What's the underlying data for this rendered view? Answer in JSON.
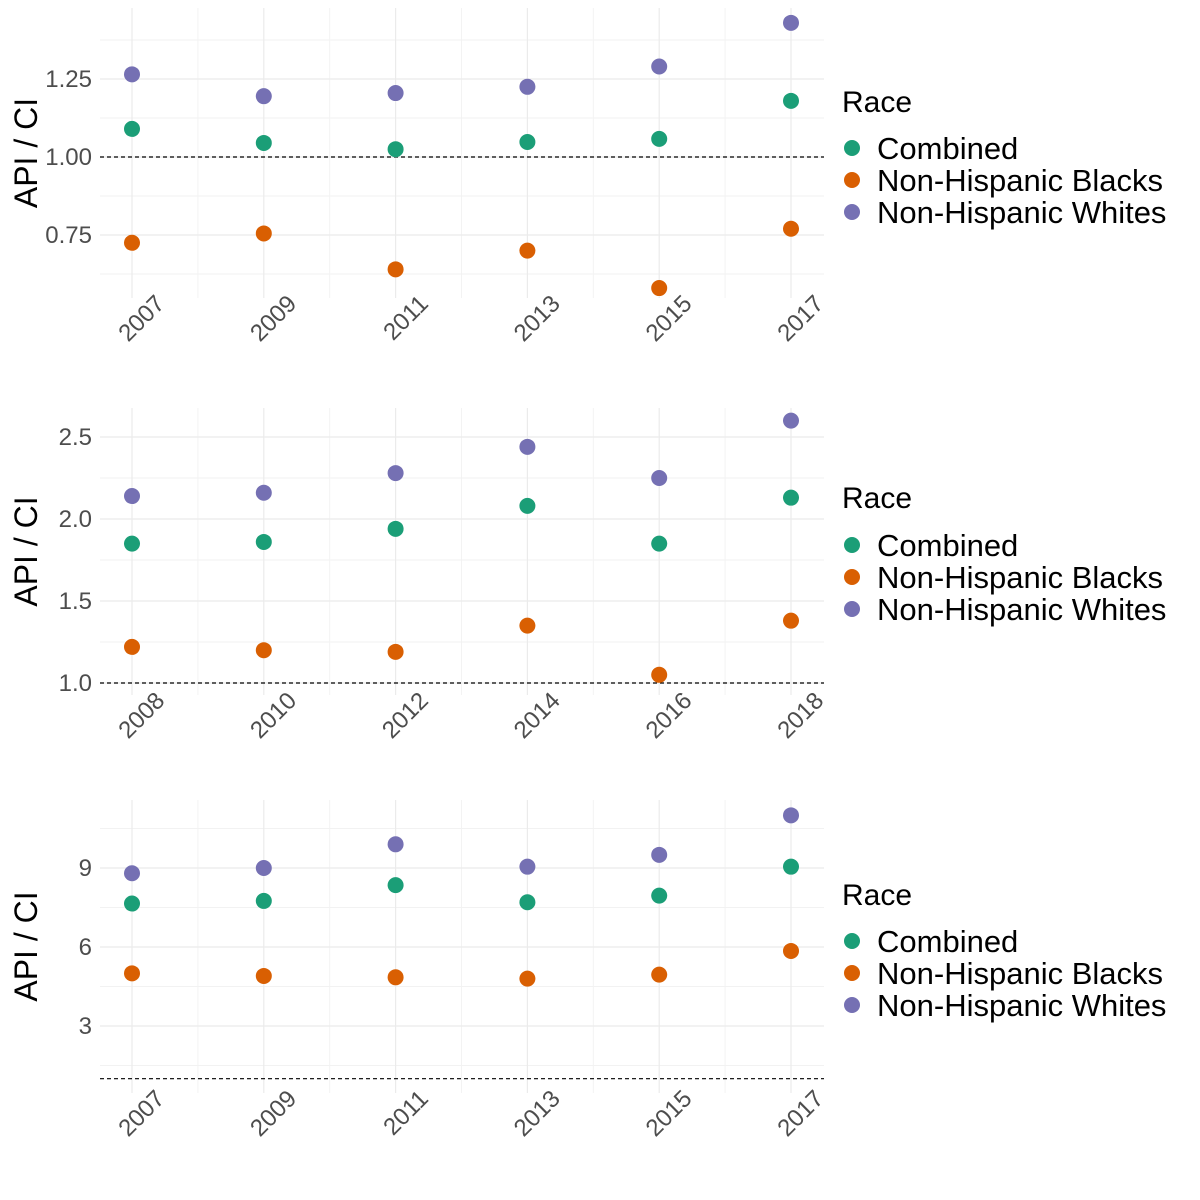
{
  "chart_data": [
    {
      "type": "scatter",
      "xlabel": "",
      "ylabel": "API / CI",
      "x": [
        2007,
        2009,
        2011,
        2013,
        2015,
        2017
      ],
      "x_tick_labels": [
        "2007",
        "2009",
        "2011",
        "2013",
        "2015",
        "2017"
      ],
      "ylim": [
        0.58,
        1.45
      ],
      "y_ticks": [
        0.75,
        1.0,
        1.25
      ],
      "y_tick_labels": [
        "0.75",
        "1.00",
        "1.25"
      ],
      "reference_line": 1.0,
      "grid": true,
      "legend": {
        "title": "Race",
        "position": "right"
      },
      "series": [
        {
          "name": "Combined",
          "color": "#1b9e77",
          "values": [
            1.09,
            1.045,
            1.025,
            1.048,
            1.058,
            1.18
          ]
        },
        {
          "name": "Non-Hispanic Blacks",
          "color": "#d95f02",
          "values": [
            0.725,
            0.755,
            0.64,
            0.7,
            0.58,
            0.77
          ]
        },
        {
          "name": "Non-Hispanic Whites",
          "color": "#7570b3",
          "values": [
            1.265,
            1.195,
            1.205,
            1.225,
            1.29,
            1.43
          ]
        }
      ]
    },
    {
      "type": "scatter",
      "xlabel": "",
      "ylabel": "API / CI",
      "x": [
        2008,
        2010,
        2012,
        2014,
        2016,
        2018
      ],
      "x_tick_labels": [
        "2008",
        "2010",
        "2012",
        "2014",
        "2016",
        "2018"
      ],
      "ylim": [
        1.0,
        2.65
      ],
      "y_ticks": [
        1.0,
        1.5,
        2.0,
        2.5
      ],
      "y_tick_labels": [
        "1.0",
        "1.5",
        "2.0",
        "2.5"
      ],
      "reference_line": 1.0,
      "grid": true,
      "legend": {
        "title": "Race",
        "position": "right"
      },
      "series": [
        {
          "name": "Combined",
          "color": "#1b9e77",
          "values": [
            1.85,
            1.86,
            1.94,
            2.08,
            1.85,
            2.13
          ]
        },
        {
          "name": "Non-Hispanic Blacks",
          "color": "#d95f02",
          "values": [
            1.22,
            1.2,
            1.19,
            1.35,
            1.05,
            1.38
          ]
        },
        {
          "name": "Non-Hispanic Whites",
          "color": "#7570b3",
          "values": [
            2.14,
            2.16,
            2.28,
            2.44,
            2.25,
            2.6
          ]
        }
      ]
    },
    {
      "type": "scatter",
      "xlabel": "",
      "ylabel": "API / CI",
      "x": [
        2007,
        2009,
        2011,
        2013,
        2015,
        2017
      ],
      "x_tick_labels": [
        "2007",
        "2009",
        "2011",
        "2013",
        "2015",
        "2017"
      ],
      "ylim": [
        1.0,
        11.0
      ],
      "y_ticks": [
        3,
        6,
        9
      ],
      "y_tick_labels": [
        "3",
        "6",
        "9"
      ],
      "reference_line": 1.0,
      "grid": true,
      "legend": {
        "title": "Race",
        "position": "right"
      },
      "series": [
        {
          "name": "Combined",
          "color": "#1b9e77",
          "values": [
            7.65,
            7.75,
            8.35,
            7.7,
            7.95,
            9.05
          ]
        },
        {
          "name": "Non-Hispanic Blacks",
          "color": "#d95f02",
          "values": [
            5.0,
            4.9,
            4.85,
            4.8,
            4.95,
            5.85
          ]
        },
        {
          "name": "Non-Hispanic Whites",
          "color": "#7570b3",
          "values": [
            8.8,
            9.0,
            9.9,
            9.05,
            9.5,
            11.0
          ]
        }
      ]
    }
  ]
}
